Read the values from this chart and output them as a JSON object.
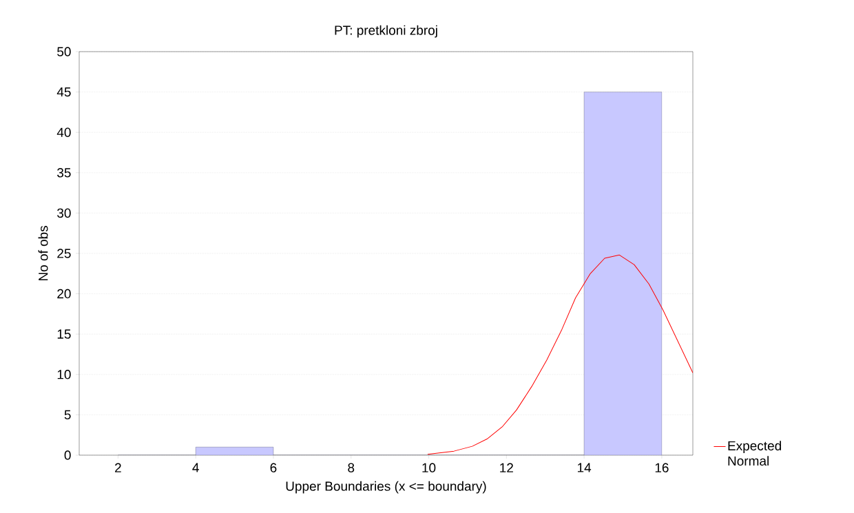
{
  "chart_data": {
    "type": "histogram",
    "title": "PT: pretkloni zbroj",
    "xlabel": "Upper Boundaries (x <= boundary)",
    "ylabel": "No of obs",
    "bins": [
      2,
      4,
      6,
      8,
      10,
      12,
      14,
      16
    ],
    "values": [
      0,
      1,
      0,
      0,
      0,
      0,
      45
    ],
    "color": "#c8c8ff",
    "series": [
      {
        "type": "line",
        "name": "Expected Normal",
        "color": "#ff0000",
        "x": [
          9.97,
          10.65,
          11.12,
          11.5,
          11.89,
          12.26,
          12.65,
          13.04,
          13.43,
          13.78,
          14.16,
          14.53,
          14.91,
          15.29,
          15.67,
          16.03,
          16.8
        ],
        "values": [
          0.1,
          0.5,
          1.1,
          2,
          3.5,
          5.6,
          8.5,
          11.8,
          15.6,
          19.5,
          22.5,
          24.4,
          24.8,
          23.6,
          21.2,
          18,
          10.2
        ]
      }
    ],
    "xlim": [
      1,
      16.8
    ],
    "xticks": [
      2,
      4,
      6,
      8,
      10,
      12,
      14,
      16
    ],
    "ylim": [
      0,
      50
    ],
    "yticks": [
      0,
      5,
      10,
      15,
      20,
      25,
      30,
      35,
      40,
      45,
      50
    ],
    "grid": "y",
    "legend": "right"
  }
}
